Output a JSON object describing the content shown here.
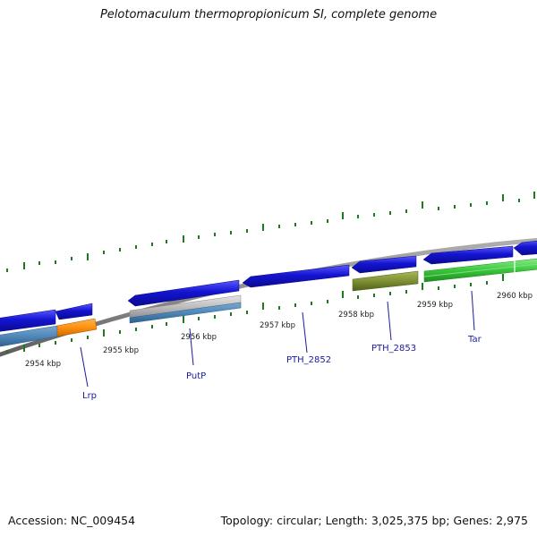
{
  "title": "Pelotomaculum thermopropionicum SI, complete genome",
  "footer": {
    "accession": "Accession: NC_009454",
    "summary": "Topology: circular; Length: 3,025,375 bp; Genes: 2,975"
  },
  "colors": {
    "backbone": "#8a8a8a",
    "gene_blue": "#1414d2",
    "tick_green": "#1f7a1f",
    "label_blue": "#1a1aa0"
  },
  "position_labels": [
    "2954 kbp",
    "2955 kbp",
    "2956 kbp",
    "2957 kbp",
    "2958 kbp",
    "2959 kbp",
    "2960 kbp"
  ],
  "gene_labels": [
    "Lrp",
    "PutP",
    "PTH_2852",
    "PTH_2853",
    "Tar"
  ]
}
